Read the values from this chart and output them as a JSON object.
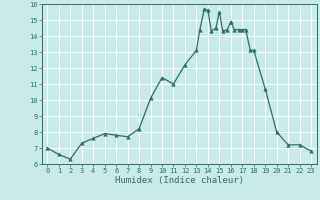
{
  "x": [
    0,
    1,
    2,
    3,
    4,
    5,
    6,
    7,
    8,
    9,
    10,
    11,
    12,
    13,
    13.3,
    13.7,
    14,
    14.3,
    14.7,
    15,
    15.3,
    15.7,
    16,
    16.3,
    16.7,
    17,
    17.3,
    17.7,
    18,
    19,
    20,
    21,
    22,
    23
  ],
  "y": [
    7.0,
    6.6,
    6.3,
    7.3,
    7.6,
    7.9,
    7.8,
    7.7,
    8.2,
    10.1,
    11.4,
    11.0,
    12.2,
    13.1,
    14.4,
    15.7,
    15.6,
    14.3,
    14.5,
    15.5,
    14.3,
    14.4,
    14.9,
    14.4,
    14.4,
    14.4,
    14.4,
    13.1,
    13.1,
    10.7,
    8.0,
    7.2,
    7.2,
    6.8
  ],
  "xlabel": "Humidex (Indice chaleur)",
  "xlim": [
    -0.5,
    23.5
  ],
  "ylim": [
    6,
    16
  ],
  "yticks": [
    6,
    7,
    8,
    9,
    10,
    11,
    12,
    13,
    14,
    15,
    16
  ],
  "xticks": [
    0,
    1,
    2,
    3,
    4,
    5,
    6,
    7,
    8,
    9,
    10,
    11,
    12,
    13,
    14,
    15,
    16,
    17,
    18,
    19,
    20,
    21,
    22,
    23
  ],
  "line_color": "#2d6e5e",
  "marker": "^",
  "marker_size": 2.5,
  "bg_color": "#c8eaea",
  "grid_color": "#ffffff",
  "tick_label_color": "#2d6e5e",
  "xlabel_color": "#2d6e5e",
  "spine_color": "#2d6e5e"
}
